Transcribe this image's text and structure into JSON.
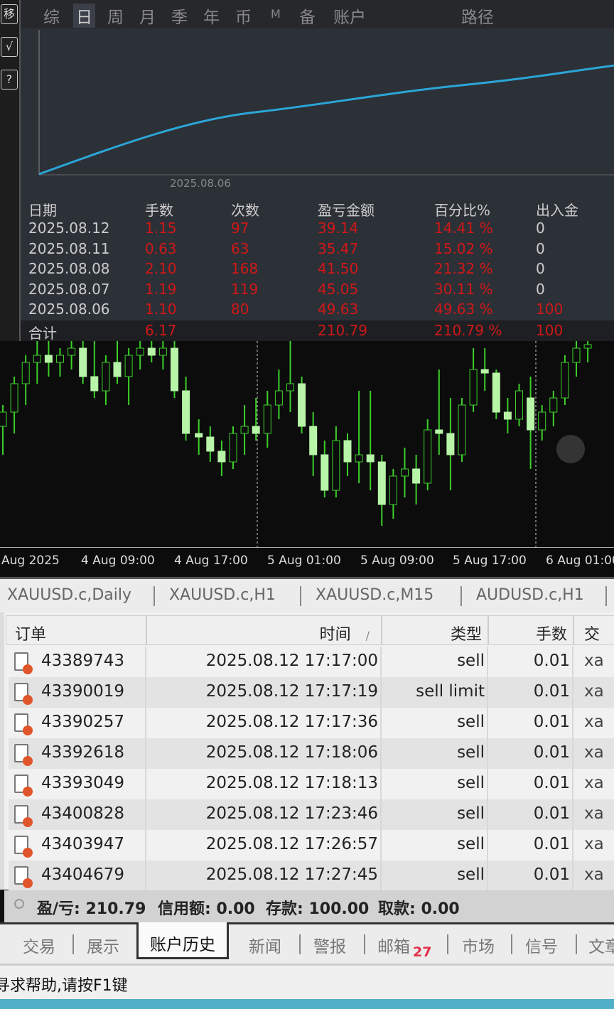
{
  "report_panel": {
    "tabs": [
      "综",
      "日",
      "周",
      "月",
      "季",
      "年",
      "币",
      "M",
      "备",
      "账户",
      "路径"
    ],
    "active_tab": "日",
    "curve_date_label": "2025.08.06",
    "headers": [
      "日期",
      "手数",
      "次数",
      "盈亏金额",
      "百分比%",
      "出入金"
    ],
    "rows": [
      {
        "date": "2025.08.12",
        "lots": "1.15",
        "count": "97",
        "pnl": "39.14",
        "pct": "14.41 %",
        "deposit": "0"
      },
      {
        "date": "2025.08.11",
        "lots": "0.63",
        "count": "63",
        "pnl": "35.47",
        "pct": "15.02 %",
        "deposit": "0"
      },
      {
        "date": "2025.08.08",
        "lots": "2.10",
        "count": "168",
        "pnl": "41.50",
        "pct": "21.32 %",
        "deposit": "0"
      },
      {
        "date": "2025.08.07",
        "lots": "1.19",
        "count": "119",
        "pnl": "45.05",
        "pct": "30.11 %",
        "deposit": "0"
      },
      {
        "date": "2025.08.06",
        "lots": "1.10",
        "count": "80",
        "pnl": "49.63",
        "pct": "49.63 %",
        "deposit": "100"
      }
    ],
    "total": {
      "label": "合计",
      "lots": "6.17",
      "pnl": "210.79",
      "pct": "210.79 %",
      "deposit": "100"
    },
    "curve_color": "#2aa6d8"
  },
  "left_tools": [
    "移",
    "√",
    "?"
  ],
  "price_chart": {
    "time_labels": [
      "Aug 2025",
      "4 Aug 09:00",
      "4 Aug 17:00",
      "5 Aug 01:00",
      "5 Aug 09:00",
      "5 Aug 17:00",
      "6 Aug 01:00"
    ],
    "candle_color": "#b8f5a8",
    "wick_color": "#3ccf2a",
    "candles": [
      [
        400,
        430,
        360,
        420
      ],
      [
        420,
        470,
        390,
        460
      ],
      [
        460,
        500,
        430,
        490
      ],
      [
        490,
        520,
        460,
        500
      ],
      [
        500,
        520,
        470,
        490
      ],
      [
        490,
        510,
        470,
        500
      ],
      [
        500,
        520,
        480,
        510
      ],
      [
        510,
        520,
        460,
        470
      ],
      [
        470,
        520,
        440,
        450
      ],
      [
        450,
        500,
        430,
        490
      ],
      [
        490,
        520,
        460,
        470
      ],
      [
        470,
        510,
        430,
        500
      ],
      [
        500,
        520,
        480,
        510
      ],
      [
        510,
        520,
        490,
        500
      ],
      [
        500,
        520,
        480,
        510
      ],
      [
        510,
        520,
        440,
        450
      ],
      [
        450,
        470,
        380,
        390
      ],
      [
        390,
        410,
        360,
        385
      ],
      [
        385,
        400,
        350,
        365
      ],
      [
        365,
        380,
        330,
        350
      ],
      [
        350,
        400,
        340,
        390
      ],
      [
        390,
        430,
        360,
        400
      ],
      [
        400,
        440,
        380,
        390
      ],
      [
        390,
        450,
        370,
        430
      ],
      [
        430,
        480,
        410,
        450
      ],
      [
        450,
        520,
        420,
        460
      ],
      [
        460,
        470,
        390,
        400
      ],
      [
        400,
        420,
        330,
        360
      ],
      [
        360,
        380,
        300,
        310
      ],
      [
        310,
        400,
        300,
        380
      ],
      [
        380,
        390,
        330,
        350
      ],
      [
        350,
        450,
        320,
        360
      ],
      [
        360,
        450,
        310,
        350
      ],
      [
        350,
        360,
        260,
        290
      ],
      [
        290,
        340,
        270,
        330
      ],
      [
        330,
        370,
        300,
        340
      ],
      [
        340,
        360,
        290,
        320
      ],
      [
        320,
        410,
        310,
        395
      ],
      [
        395,
        480,
        360,
        390
      ],
      [
        390,
        440,
        310,
        360
      ],
      [
        360,
        440,
        350,
        430
      ],
      [
        430,
        510,
        420,
        480
      ],
      [
        480,
        510,
        450,
        475
      ],
      [
        475,
        480,
        410,
        420
      ],
      [
        420,
        440,
        390,
        410
      ],
      [
        410,
        460,
        400,
        450
      ],
      [
        440,
        470,
        340,
        395
      ],
      [
        395,
        430,
        380,
        420
      ],
      [
        420,
        450,
        400,
        440
      ],
      [
        440,
        500,
        430,
        490
      ],
      [
        490,
        520,
        470,
        510
      ],
      [
        510,
        520,
        490,
        515
      ]
    ]
  },
  "symbol_tabs": [
    "XAUUSD.c,Daily",
    "XAUUSD.c,H1",
    "XAUUSD.c,M15",
    "AUDUSD.c,H1"
  ],
  "orders_table": {
    "headers": [
      "订单",
      "时间",
      "/",
      "类型",
      "手数",
      "交"
    ],
    "rows": [
      {
        "order": "43389743",
        "time": "2025.08.12 17:17:00",
        "type": "sell",
        "lots": "0.01",
        "next": "xa"
      },
      {
        "order": "43390019",
        "time": "2025.08.12 17:17:19",
        "type": "sell limit",
        "lots": "0.01",
        "next": "xa"
      },
      {
        "order": "43390257",
        "time": "2025.08.12 17:17:36",
        "type": "sell",
        "lots": "0.01",
        "next": "xa"
      },
      {
        "order": "43392618",
        "time": "2025.08.12 17:18:06",
        "type": "sell",
        "lots": "0.01",
        "next": "xa"
      },
      {
        "order": "43393049",
        "time": "2025.08.12 17:18:13",
        "type": "sell",
        "lots": "0.01",
        "next": "xa"
      },
      {
        "order": "43400828",
        "time": "2025.08.12 17:23:46",
        "type": "sell",
        "lots": "0.01",
        "next": "xa"
      },
      {
        "order": "43403947",
        "time": "2025.08.12 17:26:57",
        "type": "sell",
        "lots": "0.01",
        "next": "xa"
      },
      {
        "order": "43404679",
        "time": "2025.08.12 17:27:45",
        "type": "sell",
        "lots": "0.01",
        "next": "xa"
      }
    ]
  },
  "summary": {
    "pnl": "盈/亏: 210.79",
    "credit": "信用额: 0.00",
    "deposit": "存款: 100.00",
    "withdraw": "取款: 0.00"
  },
  "bottom_tabs": [
    "交易",
    "展示",
    "账户历史",
    "新闻",
    "警报",
    "邮箱",
    "市场",
    "信号",
    "文章"
  ],
  "mail_badge": "27",
  "status_text": "寻求帮助,请按F1键"
}
